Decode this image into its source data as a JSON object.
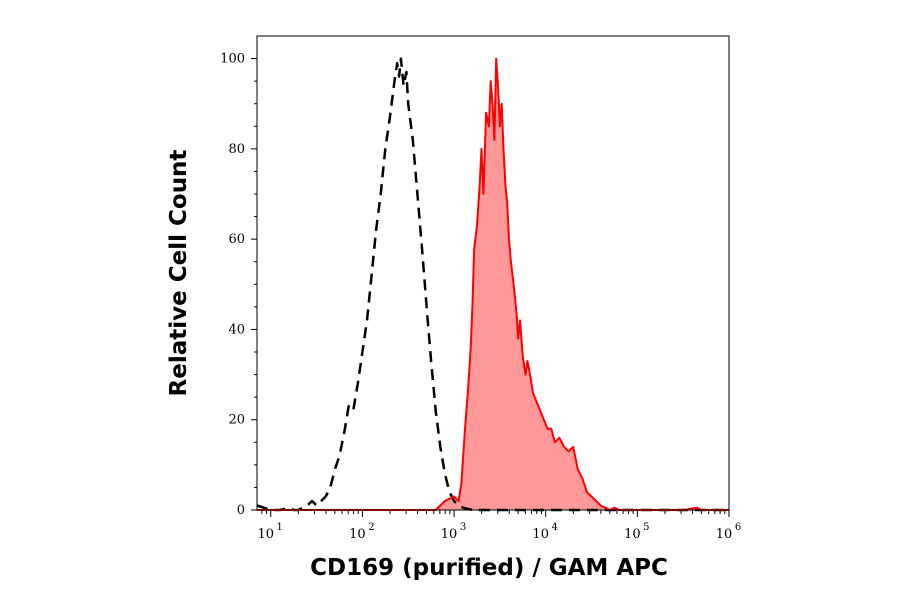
{
  "chart_data": {
    "type": "area",
    "title": "",
    "xlabel": "CD169 (purified) / GAM APC",
    "ylabel": "Relative Cell Count",
    "x_scale": "log10",
    "xlim": [
      0.85,
      6.0
    ],
    "ylim": [
      0,
      105
    ],
    "grid": false,
    "x_ticks": [
      {
        "base": "10",
        "exp": "1",
        "value": 1
      },
      {
        "base": "10",
        "exp": "2",
        "value": 2
      },
      {
        "base": "10",
        "exp": "3",
        "value": 3
      },
      {
        "base": "10",
        "exp": "4",
        "value": 4
      },
      {
        "base": "10",
        "exp": "5",
        "value": 5
      },
      {
        "base": "10",
        "exp": "6",
        "value": 6
      }
    ],
    "y_ticks": [
      {
        "label": "0",
        "value": 0
      },
      {
        "label": "20",
        "value": 20
      },
      {
        "label": "40",
        "value": 40
      },
      {
        "label": "60",
        "value": 60
      },
      {
        "label": "80",
        "value": 80
      },
      {
        "label": "100",
        "value": 100
      }
    ],
    "series": [
      {
        "style": "dashed",
        "color": "#000000",
        "fill": "none",
        "x_log10": [
          0.85,
          1.0,
          1.1,
          1.2,
          1.25,
          1.3,
          1.4,
          1.45,
          1.5,
          1.55,
          1.6,
          1.65,
          1.7,
          1.75,
          1.8,
          1.85,
          1.9,
          1.95,
          2.0,
          2.05,
          2.1,
          2.15,
          2.2,
          2.25,
          2.3,
          2.35,
          2.38,
          2.4,
          2.42,
          2.45,
          2.48,
          2.5,
          2.55,
          2.6,
          2.65,
          2.7,
          2.75,
          2.8,
          2.85,
          2.9,
          2.95,
          3.0,
          3.05,
          3.1,
          3.2,
          3.4,
          4.0,
          5.0,
          6.0
        ],
        "values": [
          1.0,
          0.0,
          0.0,
          0.5,
          0.0,
          0.0,
          1.0,
          2.0,
          1.0,
          2.0,
          3.0,
          5.0,
          9.0,
          12.0,
          17.0,
          23.0,
          22.0,
          28.0,
          35.0,
          42.0,
          52.0,
          62.0,
          70.0,
          80.0,
          87.0,
          95.0,
          99.0,
          96.0,
          100.0,
          94.0,
          97.0,
          90.0,
          82.0,
          70.0,
          58.0,
          45.0,
          33.0,
          22.0,
          14.0,
          8.0,
          4.0,
          2.0,
          1.0,
          0.5,
          0.0,
          0.0,
          0.0,
          0.0,
          0.0
        ]
      },
      {
        "style": "solid",
        "color": "#ff0000",
        "fill": "#ff9999",
        "x_log10": [
          0.85,
          2.8,
          2.9,
          3.0,
          3.05,
          3.08,
          3.1,
          3.12,
          3.15,
          3.18,
          3.2,
          3.22,
          3.25,
          3.28,
          3.3,
          3.32,
          3.35,
          3.38,
          3.4,
          3.42,
          3.44,
          3.46,
          3.48,
          3.5,
          3.52,
          3.54,
          3.56,
          3.58,
          3.6,
          3.62,
          3.65,
          3.68,
          3.7,
          3.72,
          3.75,
          3.78,
          3.8,
          3.83,
          3.86,
          3.9,
          3.94,
          3.98,
          4.02,
          4.06,
          4.1,
          4.15,
          4.2,
          4.25,
          4.3,
          4.35,
          4.4,
          4.45,
          4.5,
          4.55,
          4.6,
          4.65,
          4.7,
          4.75,
          4.8,
          5.0,
          5.5,
          5.65,
          5.7,
          6.0
        ],
        "values": [
          0.0,
          0.0,
          2.0,
          3.0,
          2.0,
          6.0,
          12.0,
          18.0,
          26.0,
          35.0,
          45.0,
          58.0,
          63.0,
          72.0,
          80.0,
          70.0,
          88.0,
          85.0,
          95.0,
          90.0,
          82.0,
          100.0,
          94.0,
          85.0,
          90.0,
          80.0,
          72.0,
          68.0,
          60.0,
          55.0,
          50.0,
          44.0,
          38.0,
          42.0,
          34.0,
          30.0,
          33.0,
          30.0,
          26.0,
          24.0,
          22.0,
          20.0,
          18.0,
          18.0,
          15.0,
          16.0,
          14.0,
          13.0,
          14.0,
          9.0,
          7.0,
          4.0,
          3.0,
          2.0,
          1.0,
          0.5,
          0.0,
          0.5,
          0.0,
          0.0,
          0.0,
          0.5,
          0.0,
          0.0
        ]
      }
    ]
  }
}
